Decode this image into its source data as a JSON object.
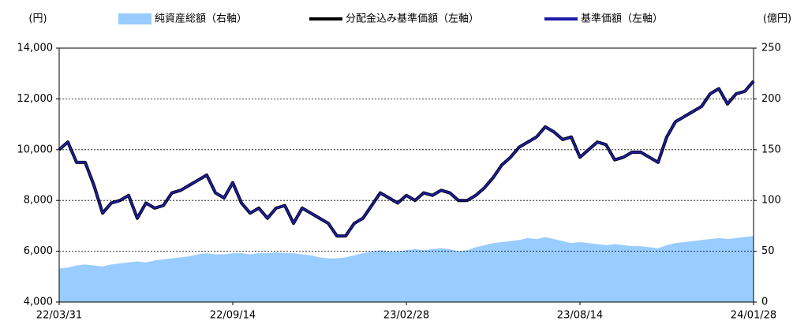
{
  "chart_data": {
    "type": "line",
    "y_unit": "(円)",
    "y2_unit": "(億円)",
    "categories": [
      "22/03/31",
      null,
      null,
      null,
      null,
      null,
      null,
      null,
      null,
      null,
      null,
      null,
      null,
      null,
      null,
      null,
      null,
      null,
      null,
      null,
      "22/09/14",
      null,
      null,
      null,
      null,
      null,
      null,
      null,
      null,
      null,
      null,
      null,
      null,
      null,
      null,
      null,
      null,
      null,
      null,
      null,
      "23/02/28",
      null,
      null,
      null,
      null,
      null,
      null,
      null,
      null,
      null,
      null,
      null,
      null,
      null,
      null,
      null,
      null,
      null,
      null,
      null,
      "23/08/14",
      null,
      null,
      null,
      null,
      null,
      null,
      null,
      null,
      null,
      null,
      null,
      null,
      null,
      null,
      null,
      null,
      null,
      null,
      null,
      "24/01/28"
    ],
    "series": [
      {
        "name": "純資産総額（右軸）",
        "type": "area",
        "axis": "y2",
        "color": "#99ccff",
        "values": [
          33,
          34,
          36,
          37,
          36,
          35,
          37,
          38,
          39,
          40,
          39,
          41,
          42,
          43,
          44,
          45,
          47,
          48,
          47,
          47,
          48,
          48,
          47,
          48,
          48,
          49,
          48,
          48,
          47,
          46,
          44,
          43,
          43,
          44,
          46,
          48,
          50,
          51,
          50,
          50,
          51,
          52,
          51,
          52,
          53,
          52,
          50,
          51,
          54,
          56,
          58,
          59,
          60,
          61,
          63,
          62,
          64,
          62,
          60,
          58,
          59,
          58,
          57,
          56,
          57,
          56,
          55,
          55,
          54,
          53,
          56,
          58,
          59,
          60,
          61,
          62,
          63,
          62,
          63,
          64,
          65
        ]
      },
      {
        "name": "分配金込み基準価額（左軸）",
        "type": "line",
        "axis": "y",
        "color": "#000000",
        "values": [
          10000,
          10300,
          9500,
          9500,
          8600,
          7500,
          7900,
          8000,
          8200,
          7300,
          7900,
          7700,
          7800,
          8300,
          8400,
          8600,
          8800,
          9000,
          8300,
          8100,
          8700,
          7900,
          7500,
          7700,
          7300,
          7700,
          7800,
          7100,
          7700,
          7500,
          7300,
          7100,
          6600,
          6600,
          7100,
          7300,
          7800,
          8300,
          8100,
          7900,
          8200,
          8000,
          8300,
          8200,
          8400,
          8300,
          8000,
          8000,
          8200,
          8500,
          8900,
          9400,
          9700,
          10100,
          10300,
          10500,
          10900,
          10700,
          10400,
          10500,
          9700,
          10000,
          10300,
          10200,
          9600,
          9700,
          9900,
          9900,
          9700,
          9500,
          10500,
          11100,
          11300,
          11500,
          11700,
          12200,
          12400,
          11800,
          12200,
          12300,
          12700
        ]
      },
      {
        "name": "基準価額（左軸）",
        "type": "line",
        "axis": "y",
        "color": "#1c1ca8",
        "values": [
          10000,
          10300,
          9500,
          9500,
          8600,
          7500,
          7900,
          8000,
          8200,
          7300,
          7900,
          7700,
          7800,
          8300,
          8400,
          8600,
          8800,
          9000,
          8300,
          8100,
          8700,
          7900,
          7500,
          7700,
          7300,
          7700,
          7800,
          7100,
          7700,
          7500,
          7300,
          7100,
          6600,
          6600,
          7100,
          7300,
          7800,
          8300,
          8100,
          7900,
          8200,
          8000,
          8300,
          8200,
          8400,
          8300,
          8000,
          8000,
          8200,
          8500,
          8900,
          9400,
          9700,
          10100,
          10300,
          10500,
          10900,
          10700,
          10400,
          10500,
          9700,
          10000,
          10300,
          10200,
          9600,
          9700,
          9900,
          9900,
          9700,
          9500,
          10500,
          11100,
          11300,
          11500,
          11700,
          12200,
          12400,
          11800,
          12200,
          12300,
          12700
        ]
      }
    ],
    "ylim": [
      4000,
      14000
    ],
    "yticks": [
      {
        "value": 4000,
        "label": "4,000"
      },
      {
        "value": 6000,
        "label": "6,000"
      },
      {
        "value": 8000,
        "label": "8,000"
      },
      {
        "value": 10000,
        "label": "10,000"
      },
      {
        "value": 12000,
        "label": "12,000"
      },
      {
        "value": 14000,
        "label": "14,000"
      }
    ],
    "y2lim": [
      0,
      250
    ],
    "y2ticks": [
      0,
      50,
      100,
      150,
      200,
      250
    ],
    "grid": true
  }
}
